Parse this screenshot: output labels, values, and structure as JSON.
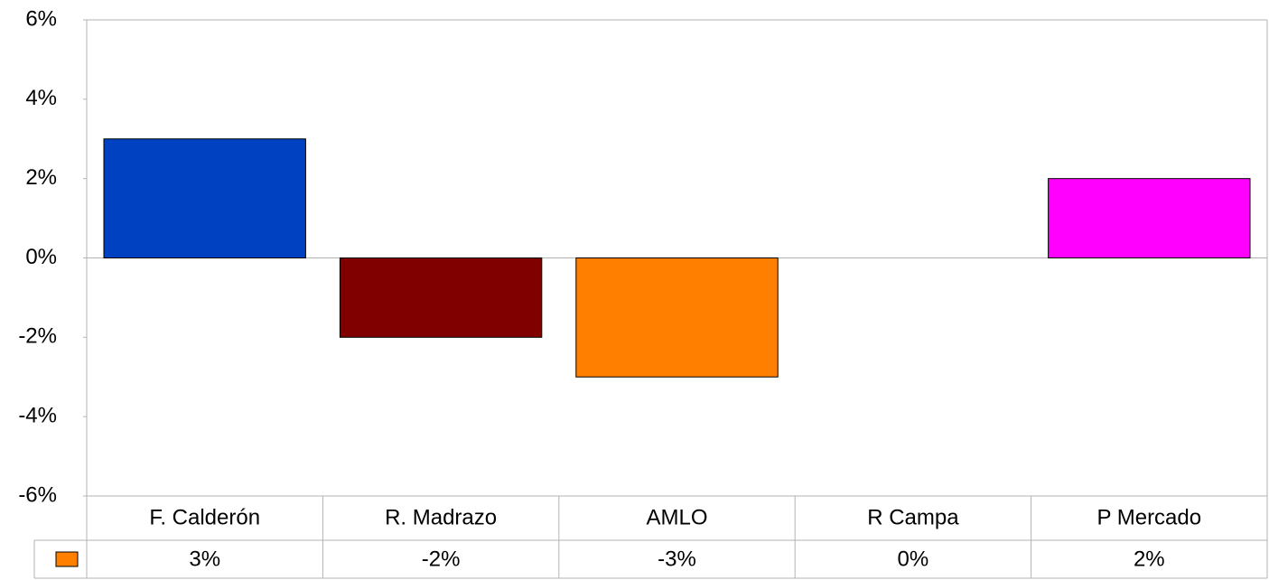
{
  "chart_data": {
    "type": "bar",
    "categories": [
      "F. Calderón",
      "R. Madrazo",
      "AMLO",
      "R Campa",
      "P Mercado"
    ],
    "values": [
      3,
      -2,
      -3,
      0,
      2
    ],
    "value_labels": [
      "3%",
      "-2%",
      "-3%",
      "0%",
      "2%"
    ],
    "colors": [
      "#0041c2",
      "#800000",
      "#ff8000",
      "#808080",
      "#ff00ff"
    ],
    "key_color": "#ff8000",
    "ylim": [
      -6,
      6
    ],
    "yticks": [
      {
        "value": -6,
        "label": "-6%"
      },
      {
        "value": -4,
        "label": "-4%"
      },
      {
        "value": -2,
        "label": "-2%"
      },
      {
        "value": 0,
        "label": "0%"
      },
      {
        "value": 2,
        "label": "2%"
      },
      {
        "value": 4,
        "label": "4%"
      },
      {
        "value": 6,
        "label": "6%"
      }
    ],
    "grid": false
  }
}
